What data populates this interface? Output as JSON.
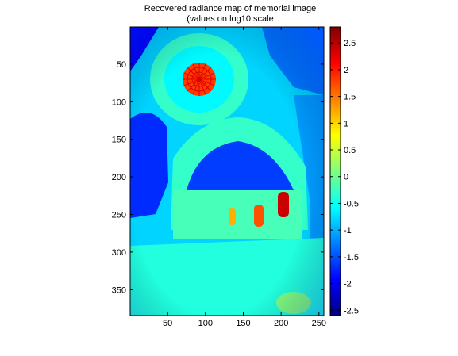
{
  "figure": {
    "title_line1": "Recovered radiance map of memorial image",
    "title_line2": "(values on log10 scale"
  },
  "chart_data": {
    "type": "heatmap",
    "title": "Recovered radiance map of memorial image (values on log10 scale",
    "image_width": 256,
    "image_height": 384,
    "xlim": [
      0.5,
      256.5
    ],
    "ylim": [
      0.5,
      384.5
    ],
    "y_reversed": true,
    "x_ticks": [
      50,
      100,
      150,
      200,
      250
    ],
    "y_ticks": [
      50,
      100,
      150,
      200,
      250,
      300,
      350
    ],
    "colorbar": {
      "colormap": "jet",
      "clim": [
        -2.6,
        2.8
      ],
      "ticks": [
        -2.5,
        -2,
        -1.5,
        -1,
        -0.5,
        0,
        0.5,
        1,
        1.5,
        2,
        2.5
      ],
      "tick_labels": [
        "-2.5",
        "-2",
        "-1.5",
        "-1",
        "-0.5",
        "0",
        "0.5",
        "1",
        "1.5",
        "2",
        "2.5"
      ]
    },
    "regions": [
      {
        "name": "background",
        "value": -0.8
      },
      {
        "name": "left-vault-shadow",
        "value": -1.7
      },
      {
        "name": "top-left-corner",
        "value": -1.9
      },
      {
        "name": "top-right-window-area",
        "value": -1.3
      },
      {
        "name": "right-wall",
        "value": -1.1
      },
      {
        "name": "dome-outer-ring",
        "value": -0.3
      },
      {
        "name": "dome-inner-ring",
        "value": -0.6
      },
      {
        "name": "dome-oculus-glass",
        "value": 1.8
      },
      {
        "name": "oculus-ribs",
        "value": 2.3
      },
      {
        "name": "apse-arch-bright",
        "value": -0.3
      },
      {
        "name": "apse-dark-ceiling",
        "value": -1.6
      },
      {
        "name": "altar-wall",
        "value": -0.2
      },
      {
        "name": "window-left",
        "value": 1.2
      },
      {
        "name": "window-middle",
        "value": 1.7
      },
      {
        "name": "window-right",
        "value": 2.4
      },
      {
        "name": "floor-steps",
        "value": -0.4
      },
      {
        "name": "floor-bright-patch",
        "value": 0.1
      }
    ]
  }
}
